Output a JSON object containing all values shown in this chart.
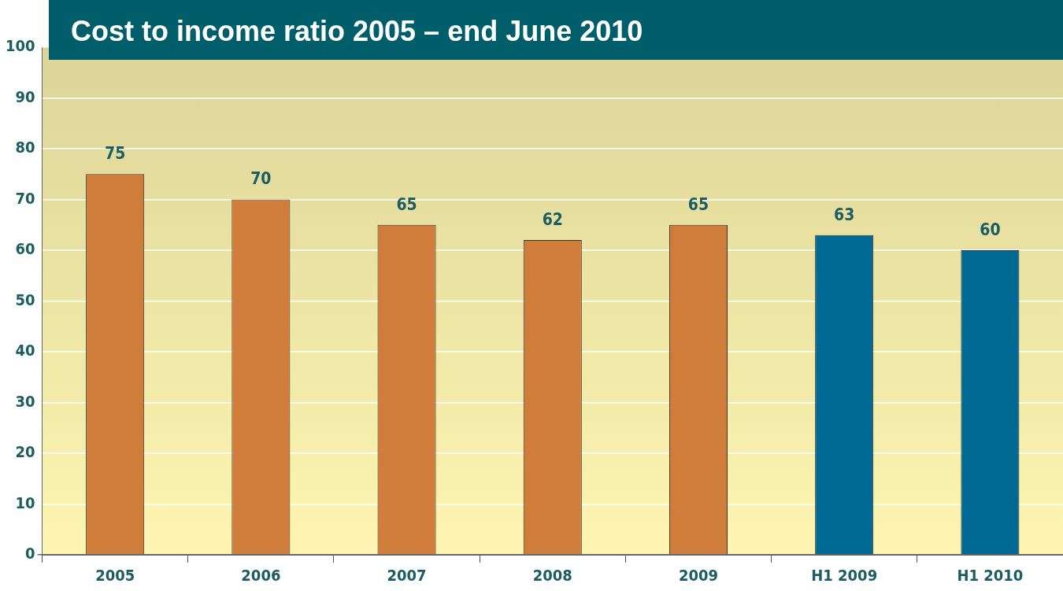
{
  "chart_data": {
    "type": "bar",
    "title": "Cost to income ratio 2005 – end June 2010",
    "categories": [
      "2005",
      "2006",
      "2007",
      "2008",
      "2009",
      "H1 2009",
      "H1 2010"
    ],
    "values": [
      75,
      70,
      65,
      62,
      65,
      63,
      60
    ],
    "colors": [
      "#d07c3a",
      "#d07c3a",
      "#d07c3a",
      "#d07c3a",
      "#d07c3a",
      "#006994",
      "#006994"
    ],
    "ylim": [
      0,
      100
    ],
    "yticks": [
      0,
      10,
      20,
      30,
      40,
      50,
      60,
      70,
      80,
      90,
      100
    ],
    "grid": "y",
    "data_labels": true,
    "legend": false
  }
}
